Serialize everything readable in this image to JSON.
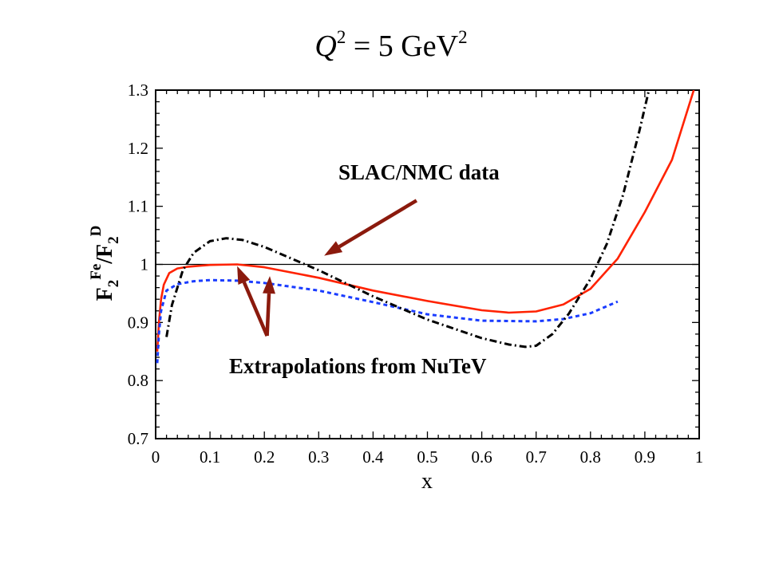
{
  "chart_data": {
    "type": "line",
    "title": {
      "var": "Q",
      "exp": "2",
      "text": " = 5 GeV",
      "unit_exp": "2"
    },
    "xlabel": "x",
    "ylabel": {
      "f1": "F",
      "s1": "2",
      "p1": "Fe",
      "sep": "/F",
      "s2": "2",
      "p2": "D"
    },
    "xlim": [
      0,
      1
    ],
    "ylim": [
      0.7,
      1.3
    ],
    "xticks": [
      "0",
      "0.1",
      "0.2",
      "0.3",
      "0.4",
      "0.5",
      "0.6",
      "0.7",
      "0.8",
      "0.9",
      "1"
    ],
    "yticks": [
      "0.7",
      "0.8",
      "0.9",
      "1",
      "1.1",
      "1.2",
      "1.3"
    ],
    "reference_line": 1.0,
    "colors": {
      "red": "#ff2200",
      "blue": "#1a3cff",
      "black": "#000000",
      "arrow": "#8b1a0d"
    },
    "series": [
      {
        "name": "red-solid",
        "color": "#ff2200",
        "dash": "solid",
        "points": [
          [
            0.003,
            0.85
          ],
          [
            0.006,
            0.9
          ],
          [
            0.01,
            0.94
          ],
          [
            0.015,
            0.965
          ],
          [
            0.025,
            0.985
          ],
          [
            0.04,
            0.993
          ],
          [
            0.06,
            0.996
          ],
          [
            0.1,
            0.999
          ],
          [
            0.15,
            1.0
          ],
          [
            0.2,
            0.995
          ],
          [
            0.3,
            0.977
          ],
          [
            0.4,
            0.955
          ],
          [
            0.5,
            0.937
          ],
          [
            0.6,
            0.921
          ],
          [
            0.65,
            0.917
          ],
          [
            0.7,
            0.919
          ],
          [
            0.75,
            0.931
          ],
          [
            0.8,
            0.958
          ],
          [
            0.85,
            1.01
          ],
          [
            0.9,
            1.09
          ],
          [
            0.95,
            1.18
          ],
          [
            0.99,
            1.3
          ]
        ]
      },
      {
        "name": "blue-dashed",
        "color": "#1a3cff",
        "dash": "dashed",
        "points": [
          [
            0.003,
            0.83
          ],
          [
            0.006,
            0.88
          ],
          [
            0.01,
            0.92
          ],
          [
            0.02,
            0.955
          ],
          [
            0.04,
            0.966
          ],
          [
            0.07,
            0.971
          ],
          [
            0.1,
            0.973
          ],
          [
            0.15,
            0.972
          ],
          [
            0.2,
            0.968
          ],
          [
            0.3,
            0.955
          ],
          [
            0.4,
            0.935
          ],
          [
            0.5,
            0.914
          ],
          [
            0.6,
            0.903
          ],
          [
            0.7,
            0.902
          ],
          [
            0.75,
            0.906
          ],
          [
            0.8,
            0.916
          ],
          [
            0.85,
            0.936
          ]
        ]
      },
      {
        "name": "black-dash-dot",
        "color": "#000000",
        "dash": "dashdot",
        "points": [
          [
            0.02,
            0.875
          ],
          [
            0.03,
            0.93
          ],
          [
            0.05,
            0.99
          ],
          [
            0.07,
            1.02
          ],
          [
            0.1,
            1.04
          ],
          [
            0.13,
            1.045
          ],
          [
            0.16,
            1.042
          ],
          [
            0.2,
            1.03
          ],
          [
            0.3,
            0.99
          ],
          [
            0.4,
            0.945
          ],
          [
            0.5,
            0.905
          ],
          [
            0.6,
            0.873
          ],
          [
            0.65,
            0.862
          ],
          [
            0.68,
            0.858
          ],
          [
            0.7,
            0.86
          ],
          [
            0.73,
            0.88
          ],
          [
            0.76,
            0.915
          ],
          [
            0.8,
            0.975
          ],
          [
            0.83,
            1.035
          ],
          [
            0.86,
            1.12
          ],
          [
            0.89,
            1.23
          ],
          [
            0.91,
            1.31
          ]
        ]
      }
    ],
    "annotations": [
      {
        "text": "SLAC/NMC data",
        "position": "upper-middle",
        "arrow_to": [
          0.31,
          1.015
        ],
        "arrow_from": [
          0.48,
          1.11
        ]
      },
      {
        "text": "Extrapolations from  NuTeV",
        "position": "lower-middle",
        "arrows": [
          {
            "from": [
              0.205,
              0.877
            ],
            "to": [
              0.15,
              0.997
            ]
          },
          {
            "from": [
              0.205,
              0.877
            ],
            "to": [
              0.21,
              0.98
            ]
          }
        ]
      }
    ]
  }
}
